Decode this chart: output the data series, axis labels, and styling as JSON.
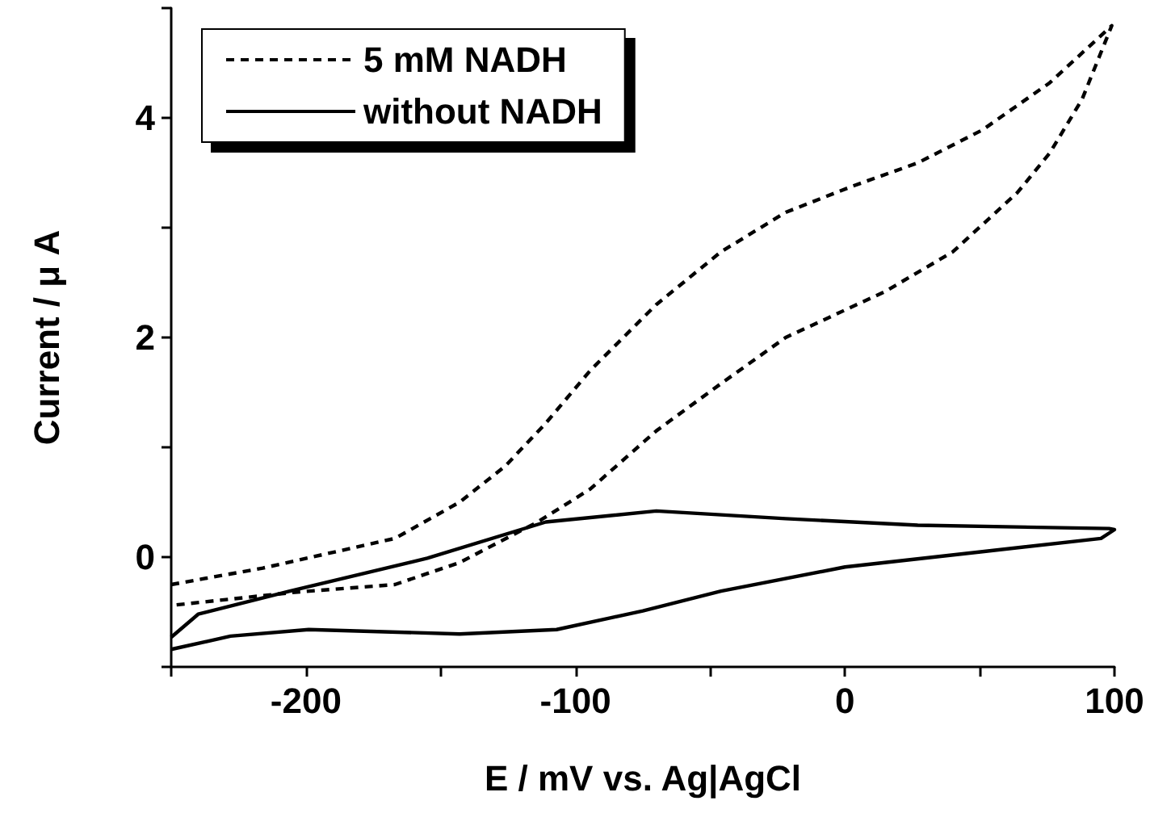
{
  "chart_data": {
    "type": "line",
    "xlabel": "E / mV vs. Ag|AgCl",
    "ylabel": "Current / μ A",
    "xlim": [
      -250,
      100
    ],
    "xticks": [
      -200,
      -100,
      0,
      100,
      {
        "value": -250,
        "label": null
      },
      {
        "value": -150,
        "label": null
      },
      {
        "value": -50,
        "label": null
      },
      {
        "value": 50,
        "label": null
      }
    ],
    "ylim": [
      -1,
      5
    ],
    "yticks": [
      0,
      2,
      4,
      {
        "value": -1,
        "label": null
      },
      {
        "value": 1,
        "label": null
      },
      {
        "value": 3,
        "label": null
      },
      {
        "value": 5,
        "label": null
      }
    ],
    "grid": false,
    "legend": "top left",
    "marker": "none",
    "series": [
      {
        "name": "5 mM NADH",
        "color": "#000000",
        "line_style": "dashed",
        "x": [
          -250,
          -216,
          -167,
          -143,
          -126,
          -111,
          -94.5,
          -70,
          -46,
          -22,
          3,
          27,
          51,
          76,
          99,
          88,
          76,
          64,
          40,
          15,
          -22,
          -46,
          -70,
          -94.5,
          -114,
          -143,
          -167,
          -204,
          -250
        ],
        "values": [
          -0.25,
          -0.1,
          0.17,
          0.5,
          0.83,
          1.22,
          1.7,
          2.3,
          2.78,
          3.14,
          3.38,
          3.59,
          3.89,
          4.32,
          4.84,
          4.17,
          3.68,
          3.32,
          2.78,
          2.42,
          2.0,
          1.58,
          1.15,
          0.62,
          0.32,
          -0.05,
          -0.25,
          -0.32,
          -0.44
        ]
      },
      {
        "name": "without NADH",
        "color": "#000000",
        "line_style": "solid",
        "x": [
          -250,
          -240,
          -206,
          -155,
          -111,
          -70,
          -22,
          27,
          98,
          100,
          95,
          51,
          0,
          -46,
          -75,
          -107,
          -143,
          -199,
          -228,
          -250
        ],
        "values": [
          -0.73,
          -0.52,
          -0.31,
          -0.01,
          0.32,
          0.42,
          0.35,
          0.29,
          0.26,
          0.25,
          0.17,
          0.05,
          -0.09,
          -0.31,
          -0.49,
          -0.66,
          -0.7,
          -0.66,
          -0.72,
          -0.84
        ]
      }
    ]
  }
}
